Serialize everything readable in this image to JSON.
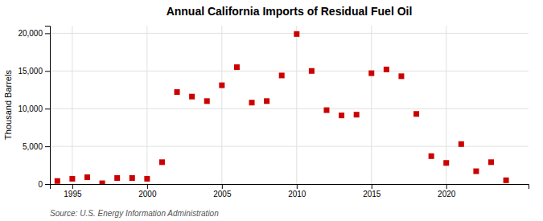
{
  "chart_data": {
    "type": "scatter",
    "title": "Annual California Imports of Residual Fuel Oil",
    "ylabel": "Thousand Barrels",
    "source": "Source: U.S. Energy Information Administration",
    "x": [
      1994,
      1995,
      1996,
      1997,
      1998,
      1999,
      2000,
      2001,
      2002,
      2003,
      2004,
      2005,
      2006,
      2007,
      2008,
      2009,
      2010,
      2011,
      2012,
      2013,
      2014,
      2015,
      2016,
      2017,
      2018,
      2019,
      2020,
      2021,
      2022,
      2023,
      2024
    ],
    "values": [
      400,
      700,
      900,
      100,
      800,
      800,
      700,
      2900,
      12200,
      11600,
      11000,
      13100,
      15500,
      10800,
      11000,
      14400,
      19900,
      15000,
      9800,
      9100,
      9200,
      14700,
      15200,
      14300,
      9300,
      3700,
      2800,
      5300,
      1700,
      2900,
      500
    ],
    "color": "#cc0000",
    "marker": "square",
    "xlim": [
      1993.5,
      2025.5
    ],
    "ylim": [
      0,
      21000
    ],
    "xticks": [
      1995,
      2000,
      2005,
      2010,
      2015,
      2020
    ],
    "yticks": [
      0,
      {
        "value": 5000,
        "label": "5,000"
      },
      {
        "value": 10000,
        "label": "10,000"
      },
      {
        "value": 15000,
        "label": "15,000"
      },
      {
        "value": 20000,
        "label": "20,000"
      }
    ],
    "grid": true
  }
}
